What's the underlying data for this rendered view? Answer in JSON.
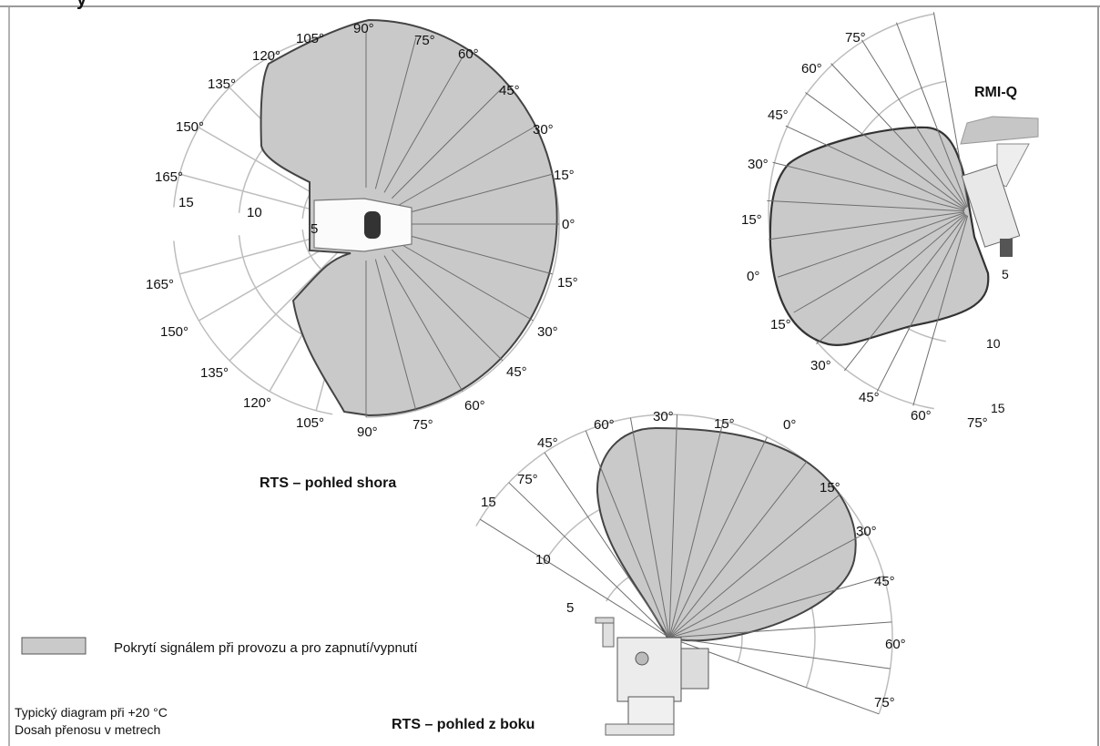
{
  "header_fragment": "y",
  "top_view": {
    "title": "RTS – pohled shora",
    "upper_angles": [
      "90°",
      "105°",
      "75°",
      "120°",
      "60°",
      "135°",
      "45°",
      "150°",
      "30°",
      "165°",
      "15°",
      "0°"
    ],
    "lower_angles": [
      "15°",
      "165°",
      "30°",
      "150°",
      "45°",
      "135°",
      "60°",
      "120°",
      "75°",
      "105°",
      "90°"
    ],
    "ranges": [
      "15",
      "10",
      "5"
    ]
  },
  "rmiq_view": {
    "title": "RMI-Q",
    "angles": [
      "75°",
      "60°",
      "45°",
      "30°",
      "15°",
      "0°",
      "15°",
      "30°",
      "45°",
      "60°",
      "75°"
    ],
    "ranges": [
      "5",
      "10",
      "15"
    ]
  },
  "side_view": {
    "title": "RTS – pohled z boku",
    "angles": [
      "45°",
      "30°",
      "15°",
      "0°",
      "60°",
      "75°",
      "15°",
      "30°",
      "45°",
      "60°",
      "75°"
    ],
    "ranges": [
      "15",
      "10",
      "5"
    ]
  },
  "legend": {
    "text": "Pokrytí signálem při provozu a pro zapnutí/vypnutí",
    "swatch_color": "#cacaca"
  },
  "notes": {
    "line1": "Typický diagram při +20 °C",
    "line2": "Dosah přenosu v metrech"
  },
  "colors": {
    "coverage_fill": "#c9c9c9",
    "coverage_outline": "#444444",
    "grid": "#bdbdbd",
    "frame": "#9a9a9a"
  }
}
